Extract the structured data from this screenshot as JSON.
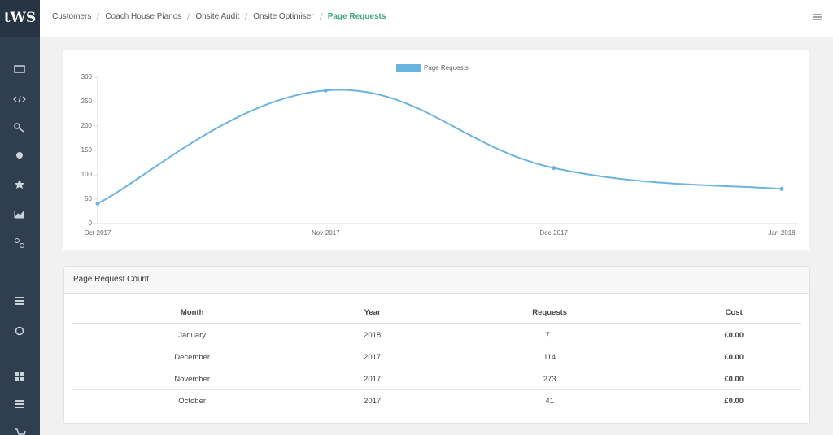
{
  "logo": "tWS",
  "breadcrumb": [
    "Customers",
    "Coach House Pianos",
    "Onsite Audit",
    "Onsite Optimiser",
    "Page Requests"
  ],
  "chart_data": {
    "type": "line",
    "categories": [
      "Oct-2017",
      "Nov-2017",
      "Dec-2017",
      "Jan-2018"
    ],
    "series": [
      {
        "name": "Page Requests",
        "color": "#6cb4e0",
        "values": [
          41,
          273,
          114,
          71
        ]
      }
    ],
    "ylim": [
      0,
      300
    ],
    "yticks": [
      0,
      50,
      100,
      150,
      200,
      250,
      300
    ]
  },
  "table": {
    "title": "Page Request Count",
    "columns": [
      "Month",
      "Year",
      "Requests",
      "Cost"
    ],
    "rows": [
      [
        "January",
        2018,
        71,
        "£0.00"
      ],
      [
        "December",
        2017,
        114,
        "£0.00"
      ],
      [
        "November",
        2017,
        273,
        "£0.00"
      ],
      [
        "October",
        2017,
        41,
        "£0.00"
      ]
    ]
  }
}
